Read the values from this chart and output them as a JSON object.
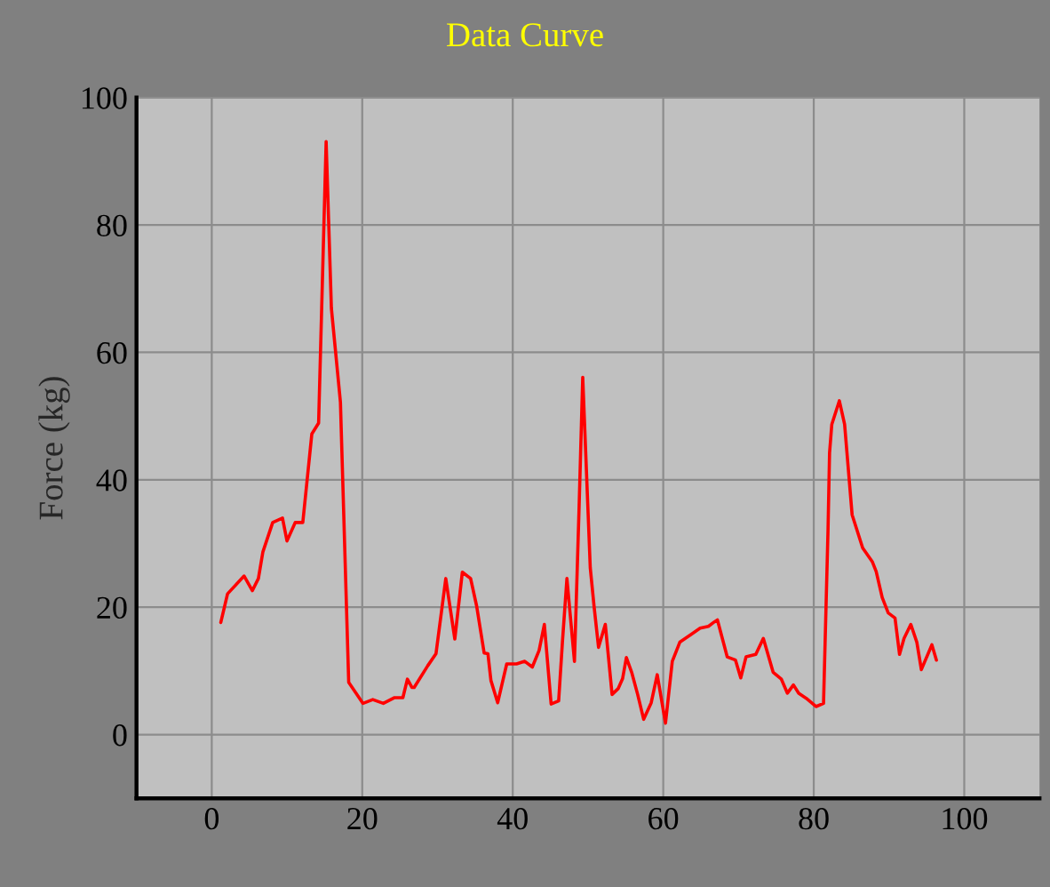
{
  "chart_data": {
    "type": "line",
    "title": "Data Curve",
    "ylabel": "Force (kg)",
    "xlim": [
      -10,
      110
    ],
    "xticks": [
      0,
      20,
      40,
      60,
      80,
      100
    ],
    "ylim": [
      -10,
      100
    ],
    "yticks": [
      0,
      20,
      40,
      60,
      80,
      100
    ],
    "grid": true,
    "marker": "none",
    "line_style": "solid",
    "series": [
      {
        "color": "#ff0000",
        "x": [
          1.2,
          2.1,
          4.3,
          5.4,
          6.2,
          6.8,
          8.1,
          9.4,
          10,
          11.1,
          12.1,
          13.3,
          14.2,
          15.2,
          15.9,
          17.1,
          18.2,
          20.1,
          21.4,
          22.8,
          24.3,
          25.4,
          26,
          26.6,
          26.9,
          28.7,
          29.8,
          31.1,
          32.3,
          33.3,
          34.4,
          35.2,
          36.2,
          36.7,
          37.1,
          38,
          39.2,
          40.5,
          41.6,
          42.6,
          43.5,
          44.2,
          45.1,
          46.1,
          46.6,
          47.2,
          48.2,
          48.8,
          49.3,
          50.3,
          50.8,
          51.4,
          52.3,
          53.2,
          54,
          54.6,
          55.1,
          55.8,
          56.6,
          57.4,
          58.4,
          59.2,
          60.3,
          61.2,
          62.2,
          63.8,
          64.9,
          66,
          66.8,
          67.2,
          68.5,
          69.6,
          70.3,
          71,
          72.3,
          73.3,
          74.6,
          75.7,
          76.5,
          77.3,
          78,
          79,
          80.3,
          81.3,
          81.9,
          82.1,
          82.4,
          83.4,
          84.1,
          85.1,
          86.5,
          87.8,
          88.3,
          89.1,
          89.9,
          90.8,
          91.4,
          92,
          92.9,
          93.7,
          94.3,
          95.7,
          96.3
        ],
        "values": [
          17.6,
          22.1,
          24.9,
          22.6,
          24.5,
          28.7,
          33.3,
          34,
          30.4,
          33.3,
          33.3,
          47.2,
          48.9,
          93.1,
          66.9,
          52.2,
          8.2,
          4.9,
          5.5,
          4.9,
          5.8,
          5.8,
          8.7,
          7.4,
          7.4,
          10.8,
          12.7,
          24.5,
          15,
          25.5,
          24.5,
          20.2,
          12.8,
          12.7,
          8.5,
          5,
          11.1,
          11.1,
          11.5,
          10.6,
          13.2,
          17.3,
          4.8,
          5.3,
          14.5,
          24.5,
          11.5,
          35,
          56.1,
          26.2,
          20.2,
          13.7,
          17.3,
          6.3,
          7.2,
          8.8,
          12.1,
          9.8,
          6.3,
          2.4,
          5,
          9.4,
          1.8,
          11.5,
          14.5,
          15.8,
          16.7,
          17,
          17.7,
          18,
          12.2,
          11.7,
          8.9,
          12.2,
          12.6,
          15.1,
          9.8,
          8.7,
          6.5,
          7.8,
          6.5,
          5.7,
          4.4,
          4.9,
          32.3,
          44.2,
          48.7,
          52.4,
          48.7,
          34.5,
          29.3,
          27.1,
          25.6,
          21.5,
          19.1,
          18.3,
          12.6,
          15.1,
          17.3,
          14.5,
          10.2,
          14.1,
          11.7
        ]
      }
    ]
  }
}
